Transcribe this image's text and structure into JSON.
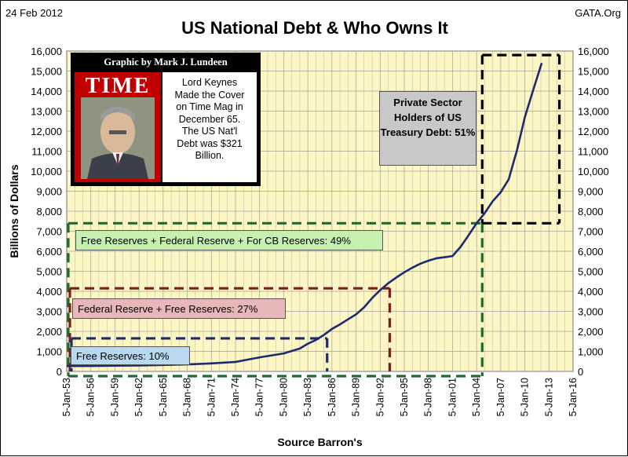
{
  "header": {
    "date": "24 Feb 2012",
    "source": "GATA.Org",
    "title": "US National Debt & Who Owns It"
  },
  "inset": {
    "credit": "Graphic by Mark J. Lundeen",
    "cover_logo": "TIME",
    "note_lines": [
      "Lord Keynes",
      "Made the Cover",
      "on Time Mag in",
      "December 65.",
      "The US Nat'l",
      "Debt was $321",
      "Billion."
    ]
  },
  "colors": {
    "plot_bg": "#fcf6c4",
    "grid": "#a0a0a0",
    "line": "#1f2a6e",
    "green_dash": "#1e6b2a",
    "maroon_dash": "#7a1f1f",
    "blue_dash": "#1f2a6e",
    "black_dash": "#000000",
    "green_box": "#c6f0b0",
    "maroon_box": "#e8b8b8",
    "blue_box": "#b8d8ee",
    "gray_box": "#c8c8c8"
  },
  "chart_data": {
    "type": "line",
    "title": "US National Debt & Who Owns It",
    "xlabel": "Source Barron's",
    "ylabel": "Billions of Dollars",
    "ylim": [
      0,
      16000
    ],
    "yticks": [
      "0",
      "1,000",
      "2,000",
      "3,000",
      "4,000",
      "5,000",
      "6,000",
      "7,000",
      "8,000",
      "9,000",
      "10,000",
      "11,000",
      "12,000",
      "13,000",
      "14,000",
      "15,000",
      "16,000"
    ],
    "xlim": [
      1953,
      2016
    ],
    "xticks": [
      "5-Jan-53",
      "5-Jan-56",
      "5-Jan-59",
      "5-Jan-62",
      "5-Jan-65",
      "5-Jan-68",
      "5-Jan-71",
      "5-Jan-74",
      "5-Jan-77",
      "5-Jan-80",
      "5-Jan-83",
      "5-Jan-86",
      "5-Jan-89",
      "5-Jan-92",
      "5-Jan-95",
      "5-Jan-98",
      "5-Jan-01",
      "5-Jan-04",
      "5-Jan-07",
      "5-Jan-10",
      "5-Jan-13",
      "5-Jan-16"
    ],
    "grid": true,
    "series": [
      {
        "x": [
          1953,
          1956,
          1959,
          1962,
          1965,
          1968,
          1971,
          1974,
          1977,
          1980,
          1982,
          1983,
          1984,
          1985,
          1986,
          1987,
          1988,
          1989,
          1990,
          1991,
          1992,
          1993,
          1994,
          1995,
          1996,
          1997,
          1998,
          1999,
          2000,
          2001,
          2002,
          2003,
          2004,
          2005,
          2006,
          2007,
          2008,
          2008.7,
          2009,
          2010,
          2011,
          2012.1
        ],
        "y": [
          265,
          272,
          285,
          298,
          320,
          348,
          400,
          475,
          700,
          900,
          1140,
          1380,
          1570,
          1820,
          2120,
          2350,
          2600,
          2850,
          3200,
          3660,
          4060,
          4400,
          4690,
          4950,
          5180,
          5380,
          5530,
          5650,
          5700,
          5760,
          6220,
          6800,
          7400,
          7900,
          8500,
          8950,
          9600,
          10600,
          11000,
          12700,
          14000,
          15400
        ]
      }
    ],
    "annotations": [
      {
        "text": "Free Reserves + Federal Reserve + For CB Reserves: 49%",
        "level": 7400,
        "x_end": 2004.7
      },
      {
        "text": "Federal Reserve + Free Reserves: 27%",
        "level": 4150,
        "x_end": 1993.2
      },
      {
        "text": "Free Reserves: 10%",
        "level": 1650,
        "x_end": 1985.4
      },
      {
        "text": "Private Sector Holders of US Treasury Debt: 51%",
        "level_low": 7400,
        "level_high": 15800,
        "x_start": 2004.7,
        "x_end": 2014.3
      }
    ]
  }
}
